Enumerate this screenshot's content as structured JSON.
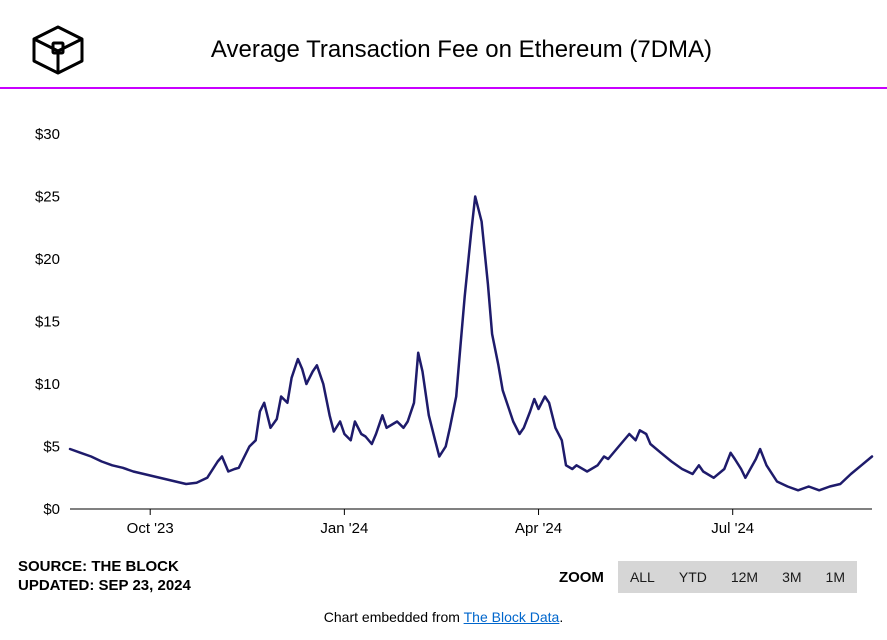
{
  "title": "Average Transaction Fee on Ethereum (7DMA)",
  "accent_color": "#c800ff",
  "chart": {
    "type": "line",
    "line_color": "#1e1b6b",
    "line_width": 2.5,
    "background_color": "#ffffff",
    "ylim": [
      0,
      32
    ],
    "ytick_step": 5,
    "yticks": [
      0,
      5,
      10,
      15,
      20,
      25,
      30
    ],
    "ytick_prefix": "$",
    "xlim": [
      0,
      380
    ],
    "xticks": [
      {
        "x": 38,
        "label": "Oct '23"
      },
      {
        "x": 130,
        "label": "Jan '24"
      },
      {
        "x": 222,
        "label": "Apr '24"
      },
      {
        "x": 314,
        "label": "Jul '24"
      }
    ],
    "points": [
      [
        0,
        4.8
      ],
      [
        5,
        4.5
      ],
      [
        10,
        4.2
      ],
      [
        15,
        3.8
      ],
      [
        20,
        3.5
      ],
      [
        25,
        3.3
      ],
      [
        30,
        3.0
      ],
      [
        35,
        2.8
      ],
      [
        40,
        2.6
      ],
      [
        45,
        2.4
      ],
      [
        50,
        2.2
      ],
      [
        55,
        2.0
      ],
      [
        60,
        2.1
      ],
      [
        65,
        2.5
      ],
      [
        70,
        3.8
      ],
      [
        72,
        4.2
      ],
      [
        75,
        3.0
      ],
      [
        78,
        3.2
      ],
      [
        80,
        3.3
      ],
      [
        85,
        5.0
      ],
      [
        88,
        5.5
      ],
      [
        90,
        7.8
      ],
      [
        92,
        8.5
      ],
      [
        95,
        6.5
      ],
      [
        98,
        7.2
      ],
      [
        100,
        9.0
      ],
      [
        103,
        8.5
      ],
      [
        105,
        10.5
      ],
      [
        108,
        12.0
      ],
      [
        110,
        11.2
      ],
      [
        112,
        10.0
      ],
      [
        115,
        11.0
      ],
      [
        117,
        11.5
      ],
      [
        120,
        10.0
      ],
      [
        123,
        7.5
      ],
      [
        125,
        6.2
      ],
      [
        128,
        7.0
      ],
      [
        130,
        6.0
      ],
      [
        133,
        5.5
      ],
      [
        135,
        7.0
      ],
      [
        138,
        6.0
      ],
      [
        140,
        5.8
      ],
      [
        143,
        5.2
      ],
      [
        145,
        6.0
      ],
      [
        148,
        7.5
      ],
      [
        150,
        6.5
      ],
      [
        153,
        6.8
      ],
      [
        155,
        7.0
      ],
      [
        158,
        6.5
      ],
      [
        160,
        7.0
      ],
      [
        163,
        8.5
      ],
      [
        165,
        12.5
      ],
      [
        167,
        11.0
      ],
      [
        170,
        7.5
      ],
      [
        173,
        5.5
      ],
      [
        175,
        4.2
      ],
      [
        178,
        5.0
      ],
      [
        180,
        6.5
      ],
      [
        183,
        9.0
      ],
      [
        185,
        13.0
      ],
      [
        187,
        17.0
      ],
      [
        190,
        22.0
      ],
      [
        192,
        25.0
      ],
      [
        195,
        23.0
      ],
      [
        198,
        18.0
      ],
      [
        200,
        14.0
      ],
      [
        203,
        11.5
      ],
      [
        205,
        9.5
      ],
      [
        208,
        8.0
      ],
      [
        210,
        7.0
      ],
      [
        213,
        6.0
      ],
      [
        215,
        6.5
      ],
      [
        218,
        7.8
      ],
      [
        220,
        8.8
      ],
      [
        222,
        8.0
      ],
      [
        225,
        9.0
      ],
      [
        227,
        8.5
      ],
      [
        230,
        6.5
      ],
      [
        233,
        5.5
      ],
      [
        235,
        3.5
      ],
      [
        238,
        3.2
      ],
      [
        240,
        3.5
      ],
      [
        245,
        3.0
      ],
      [
        250,
        3.5
      ],
      [
        253,
        4.2
      ],
      [
        255,
        4.0
      ],
      [
        260,
        5.0
      ],
      [
        265,
        6.0
      ],
      [
        268,
        5.5
      ],
      [
        270,
        6.3
      ],
      [
        273,
        6.0
      ],
      [
        275,
        5.2
      ],
      [
        280,
        4.5
      ],
      [
        285,
        3.8
      ],
      [
        290,
        3.2
      ],
      [
        295,
        2.8
      ],
      [
        298,
        3.5
      ],
      [
        300,
        3.0
      ],
      [
        305,
        2.5
      ],
      [
        310,
        3.2
      ],
      [
        313,
        4.5
      ],
      [
        315,
        4.0
      ],
      [
        318,
        3.2
      ],
      [
        320,
        2.5
      ],
      [
        325,
        4.0
      ],
      [
        327,
        4.8
      ],
      [
        330,
        3.5
      ],
      [
        335,
        2.2
      ],
      [
        340,
        1.8
      ],
      [
        345,
        1.5
      ],
      [
        350,
        1.8
      ],
      [
        355,
        1.5
      ],
      [
        360,
        1.8
      ],
      [
        365,
        2.0
      ],
      [
        370,
        2.8
      ],
      [
        375,
        3.5
      ],
      [
        380,
        4.2
      ]
    ]
  },
  "source": {
    "label": "SOURCE: THE BLOCK",
    "updated": "UPDATED: SEP 23, 2024"
  },
  "zoom": {
    "label": "ZOOM",
    "options": [
      "ALL",
      "YTD",
      "12M",
      "3M",
      "1M"
    ]
  },
  "embed": {
    "prefix": "Chart embedded from ",
    "link_text": "The Block Data",
    "suffix": "."
  }
}
